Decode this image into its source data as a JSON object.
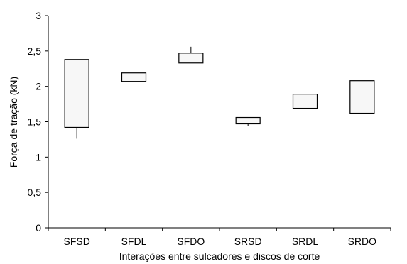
{
  "chart_data": {
    "type": "box",
    "title": "",
    "xlabel": "Interações entre sulcadores e discos de corte",
    "ylabel": "Força de tração (kN)",
    "ylim": [
      0,
      3
    ],
    "y_ticks": [
      "0",
      "0,5",
      "1",
      "1,5",
      "2",
      "2,5",
      "3"
    ],
    "y_tick_values": [
      0,
      0.5,
      1,
      1.5,
      2,
      2.5,
      3
    ],
    "grid": false,
    "categories": [
      "SFSD",
      "SFDL",
      "SFDO",
      "SRSD",
      "SRDL",
      "SRDO"
    ],
    "boxes": [
      {
        "category": "SFSD",
        "whisker_low": 1.26,
        "box_low": 1.42,
        "box_high": 2.38,
        "whisker_high": 2.38
      },
      {
        "category": "SFDL",
        "whisker_low": 2.07,
        "box_low": 2.07,
        "box_high": 2.19,
        "whisker_high": 2.21
      },
      {
        "category": "SFDO",
        "whisker_low": 2.33,
        "box_low": 2.33,
        "box_high": 2.47,
        "whisker_high": 2.56
      },
      {
        "category": "SRSD",
        "whisker_low": 1.44,
        "box_low": 1.47,
        "box_high": 1.56,
        "whisker_high": 1.56
      },
      {
        "category": "SRDL",
        "whisker_low": 1.69,
        "box_low": 1.69,
        "box_high": 1.89,
        "whisker_high": 2.3
      },
      {
        "category": "SRDO",
        "whisker_low": 1.62,
        "box_low": 1.62,
        "box_high": 2.08,
        "whisker_high": 2.08
      }
    ],
    "box_fill": "#f7f7f7",
    "line_color": "#000000"
  }
}
